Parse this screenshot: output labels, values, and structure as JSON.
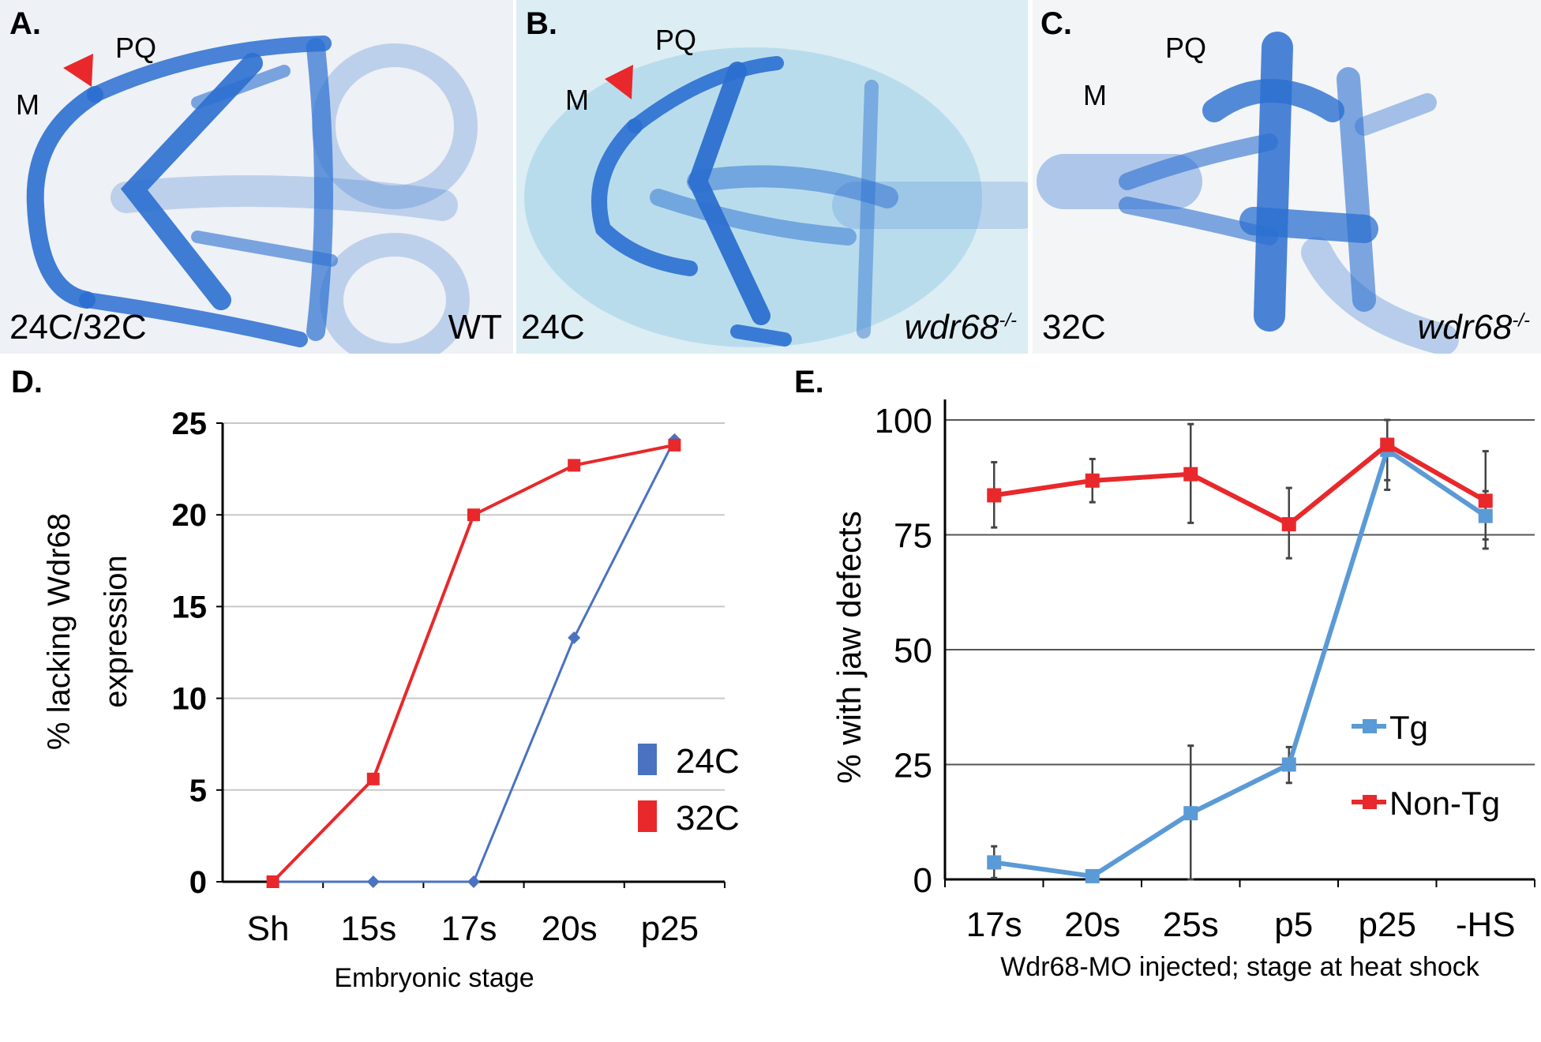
{
  "panels": {
    "A": {
      "label": "A.",
      "annotations": {
        "pq": "PQ",
        "m": "M"
      },
      "condition": "24C/32C",
      "genotype": "WT",
      "has_arrowhead": true
    },
    "B": {
      "label": "B.",
      "annotations": {
        "pq": "PQ",
        "m": "M"
      },
      "condition": "24C",
      "genotype_base": "wdr68",
      "genotype_sup": "-/-",
      "has_arrowhead": true
    },
    "C": {
      "label": "C.",
      "annotations": {
        "pq": "PQ",
        "m": "M"
      },
      "condition": "32C",
      "genotype_base": "wdr68",
      "genotype_sup": "-/-",
      "has_arrowhead": false
    }
  },
  "colors": {
    "red": "#e8282b",
    "blue_d": "#4a72c0",
    "blue_e": "#5a9ad6",
    "stain": "#2b6fd0",
    "grid": "#c8c8c8"
  },
  "chart_data": [
    {
      "panel_label": "D.",
      "type": "line",
      "title": "",
      "xlabel": "Embryonic stage",
      "ylabel_lines": [
        "% lacking Wdr68",
        "expression"
      ],
      "categories": [
        "Sh",
        "15s",
        "17s",
        "20s",
        "p25"
      ],
      "ylim": [
        0,
        25
      ],
      "yticks": [
        0,
        5,
        10,
        15,
        20,
        25
      ],
      "grid": true,
      "legend_position": "right",
      "series": [
        {
          "name": "24C",
          "color": "#4a72c0",
          "marker": "diamond",
          "values": [
            0,
            0,
            0,
            13.3,
            24.1
          ]
        },
        {
          "name": "32C",
          "color": "#e8282b",
          "marker": "square",
          "values": [
            0,
            5.6,
            20.0,
            22.7,
            23.8
          ]
        }
      ]
    },
    {
      "panel_label": "E.",
      "type": "line",
      "title": "",
      "xlabel": "Wdr68-MO injected; stage at heat shock",
      "ylabel": "% with jaw defects",
      "categories": [
        "17s",
        "20s",
        "25s",
        "p5",
        "p25",
        "-HS"
      ],
      "ylim": [
        0,
        100
      ],
      "yticks": [
        0,
        25,
        50,
        75,
        100
      ],
      "grid": true,
      "legend_position": "right",
      "series": [
        {
          "name": "Tg",
          "color": "#5a9ad6",
          "marker": "square",
          "values": [
            3.7,
            0.7,
            14.4,
            25.0,
            93.5,
            79.1
          ],
          "error_low": [
            0.3,
            0,
            0,
            21.0,
            86.9,
            74.0
          ],
          "error_high": [
            7.2,
            1.5,
            29.1,
            28.8,
            100,
            84.5
          ]
        },
        {
          "name": "Non-Tg",
          "color": "#e8282b",
          "marker": "square",
          "values": [
            83.6,
            86.8,
            88.2,
            77.3,
            94.6,
            82.4
          ],
          "error_low": [
            76.6,
            82.1,
            77.6,
            69.9,
            84.8,
            72.0
          ],
          "error_high": [
            90.8,
            91.5,
            99.1,
            85.2,
            100,
            93.2
          ]
        }
      ]
    }
  ]
}
